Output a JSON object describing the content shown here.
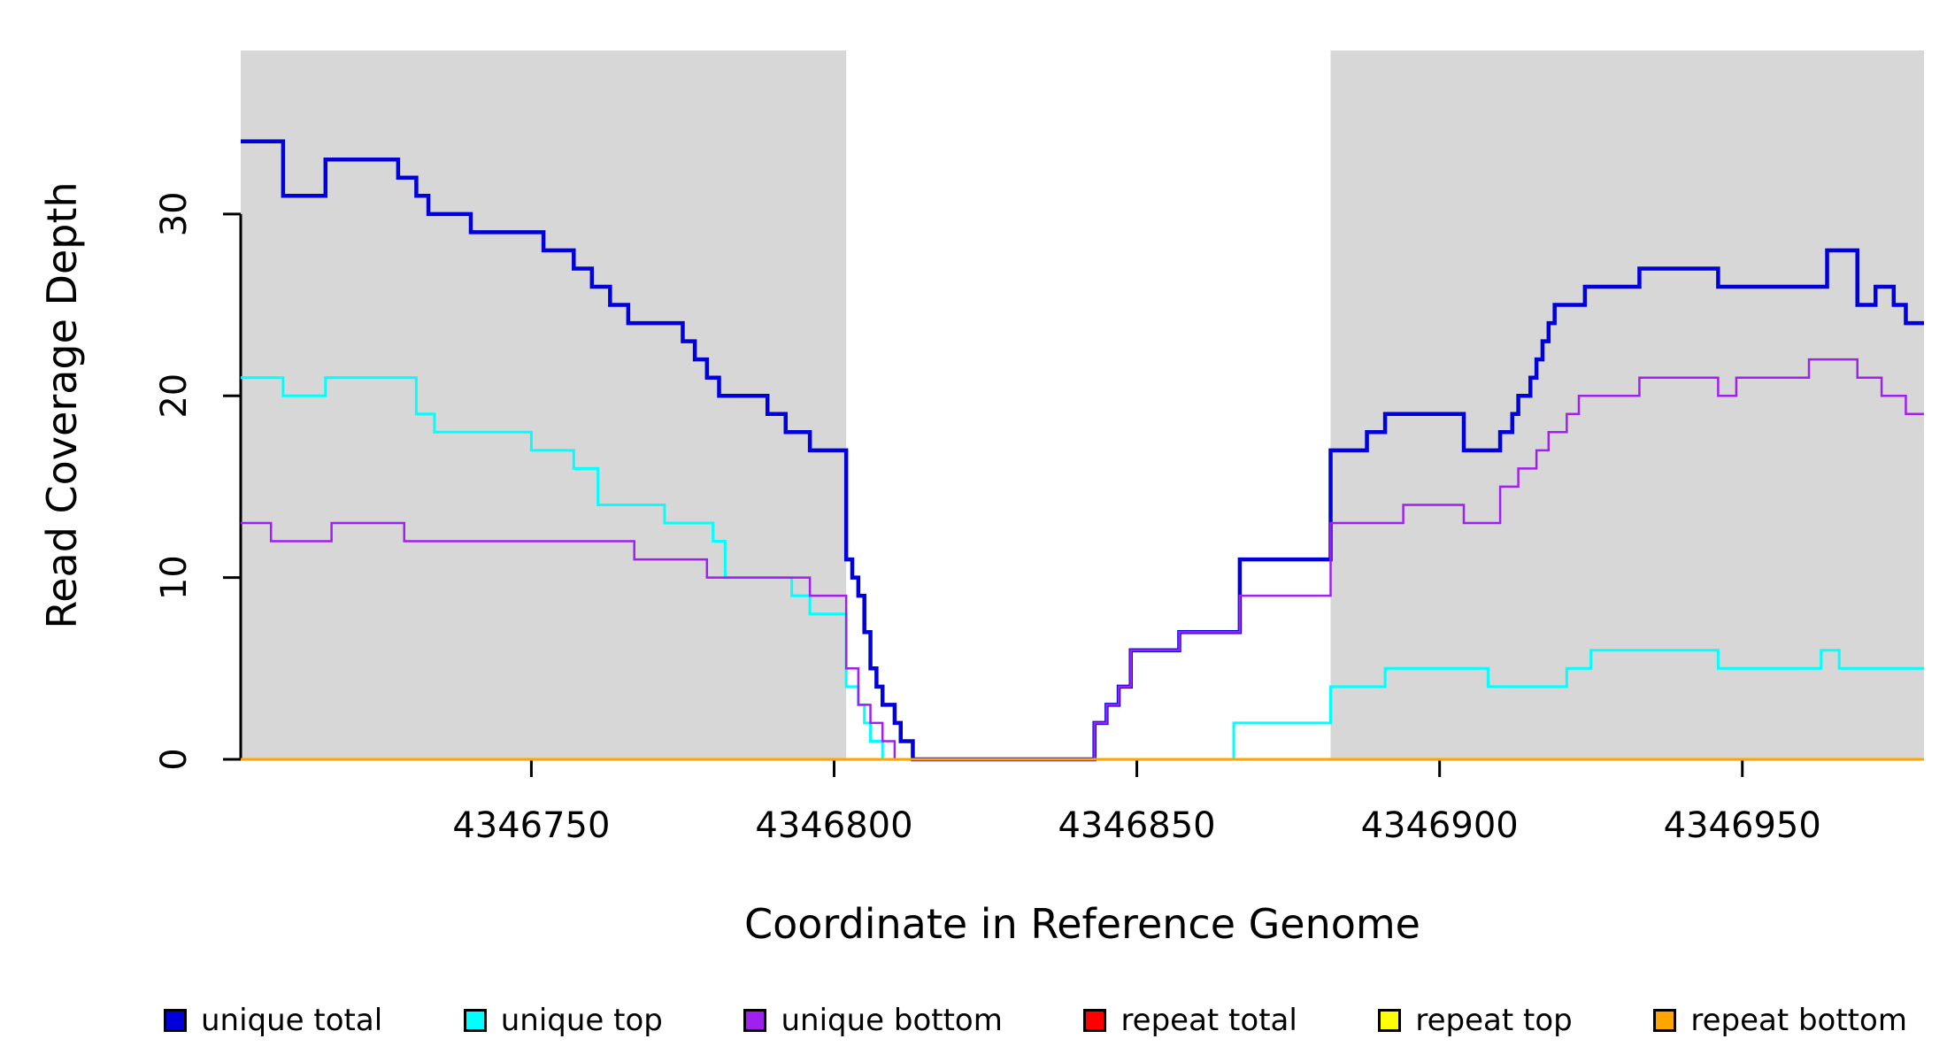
{
  "chart_data": {
    "type": "line",
    "step": true,
    "title": "",
    "xlabel": "Coordinate in Reference Genome",
    "ylabel": "Read Coverage Depth",
    "xlim": [
      4346702,
      4346980
    ],
    "ylim": [
      0,
      39
    ],
    "x_ticks": [
      4346750,
      4346800,
      4346850,
      4346900,
      4346950
    ],
    "y_ticks": [
      0,
      10,
      20,
      30
    ],
    "grid": false,
    "shaded_regions": [
      {
        "x0": 4346702,
        "x1": 4346802,
        "color": "#d7d7d7"
      },
      {
        "x0": 4346882,
        "x1": 4346980,
        "color": "#d7d7d7"
      }
    ],
    "legend": {
      "position": "bottom",
      "entries": [
        "unique total",
        "unique top",
        "unique bottom",
        "repeat total",
        "repeat top",
        "repeat bottom"
      ]
    },
    "series": [
      {
        "name": "unique total",
        "color": "#0000dd",
        "points": [
          [
            4346702,
            34
          ],
          [
            4346709,
            31
          ],
          [
            4346716,
            33
          ],
          [
            4346728,
            32
          ],
          [
            4346731,
            31
          ],
          [
            4346733,
            30
          ],
          [
            4346740,
            29
          ],
          [
            4346752,
            28
          ],
          [
            4346757,
            27
          ],
          [
            4346760,
            26
          ],
          [
            4346763,
            25
          ],
          [
            4346766,
            24
          ],
          [
            4346775,
            23
          ],
          [
            4346777,
            22
          ],
          [
            4346779,
            21
          ],
          [
            4346781,
            20
          ],
          [
            4346789,
            19
          ],
          [
            4346792,
            18
          ],
          [
            4346796,
            17
          ],
          [
            4346802,
            11
          ],
          [
            4346803,
            10
          ],
          [
            4346804,
            9
          ],
          [
            4346805,
            7
          ],
          [
            4346806,
            5
          ],
          [
            4346807,
            4
          ],
          [
            4346808,
            3
          ],
          [
            4346810,
            2
          ],
          [
            4346811,
            1
          ],
          [
            4346813,
            0
          ],
          [
            4346843,
            2
          ],
          [
            4346845,
            3
          ],
          [
            4346847,
            4
          ],
          [
            4346849,
            6
          ],
          [
            4346857,
            7
          ],
          [
            4346867,
            11
          ],
          [
            4346882,
            17
          ],
          [
            4346888,
            18
          ],
          [
            4346891,
            19
          ],
          [
            4346904,
            17
          ],
          [
            4346910,
            18
          ],
          [
            4346912,
            19
          ],
          [
            4346913,
            20
          ],
          [
            4346915,
            21
          ],
          [
            4346916,
            22
          ],
          [
            4346917,
            23
          ],
          [
            4346918,
            24
          ],
          [
            4346919,
            25
          ],
          [
            4346924,
            26
          ],
          [
            4346933,
            27
          ],
          [
            4346946,
            26
          ],
          [
            4346964,
            28
          ],
          [
            4346969,
            25
          ],
          [
            4346972,
            26
          ],
          [
            4346975,
            25
          ],
          [
            4346977,
            24
          ]
        ]
      },
      {
        "name": "unique top",
        "color": "#00ffff",
        "points": [
          [
            4346702,
            21
          ],
          [
            4346709,
            20
          ],
          [
            4346716,
            21
          ],
          [
            4346731,
            19
          ],
          [
            4346734,
            18
          ],
          [
            4346750,
            17
          ],
          [
            4346757,
            16
          ],
          [
            4346761,
            14
          ],
          [
            4346772,
            13
          ],
          [
            4346780,
            12
          ],
          [
            4346782,
            10
          ],
          [
            4346793,
            9
          ],
          [
            4346796,
            8
          ],
          [
            4346802,
            4
          ],
          [
            4346804,
            3
          ],
          [
            4346805,
            2
          ],
          [
            4346806,
            1
          ],
          [
            4346808,
            0
          ],
          [
            4346866,
            2
          ],
          [
            4346882,
            4
          ],
          [
            4346891,
            5
          ],
          [
            4346908,
            4
          ],
          [
            4346921,
            5
          ],
          [
            4346925,
            6
          ],
          [
            4346946,
            5
          ],
          [
            4346963,
            6
          ],
          [
            4346966,
            5
          ]
        ]
      },
      {
        "name": "unique bottom",
        "color": "#a020f0",
        "points": [
          [
            4346702,
            13
          ],
          [
            4346707,
            12
          ],
          [
            4346717,
            13
          ],
          [
            4346729,
            12
          ],
          [
            4346767,
            11
          ],
          [
            4346779,
            10
          ],
          [
            4346796,
            9
          ],
          [
            4346802,
            5
          ],
          [
            4346804,
            3
          ],
          [
            4346806,
            2
          ],
          [
            4346808,
            1
          ],
          [
            4346810,
            0
          ],
          [
            4346843,
            2
          ],
          [
            4346845,
            3
          ],
          [
            4346847,
            4
          ],
          [
            4346849,
            6
          ],
          [
            4346857,
            7
          ],
          [
            4346867,
            9
          ],
          [
            4346882,
            13
          ],
          [
            4346894,
            14
          ],
          [
            4346904,
            13
          ],
          [
            4346910,
            15
          ],
          [
            4346913,
            16
          ],
          [
            4346916,
            17
          ],
          [
            4346918,
            18
          ],
          [
            4346921,
            19
          ],
          [
            4346923,
            20
          ],
          [
            4346933,
            21
          ],
          [
            4346946,
            20
          ],
          [
            4346949,
            21
          ],
          [
            4346961,
            22
          ],
          [
            4346969,
            21
          ],
          [
            4346973,
            20
          ],
          [
            4346977,
            19
          ]
        ]
      },
      {
        "name": "repeat total",
        "color": "#ff0000",
        "points": [
          [
            4346702,
            0
          ]
        ]
      },
      {
        "name": "repeat top",
        "color": "#ffff00",
        "points": [
          [
            4346702,
            0
          ]
        ]
      },
      {
        "name": "repeat bottom",
        "color": "#ffa500",
        "points": [
          [
            4346702,
            0
          ]
        ]
      }
    ]
  }
}
